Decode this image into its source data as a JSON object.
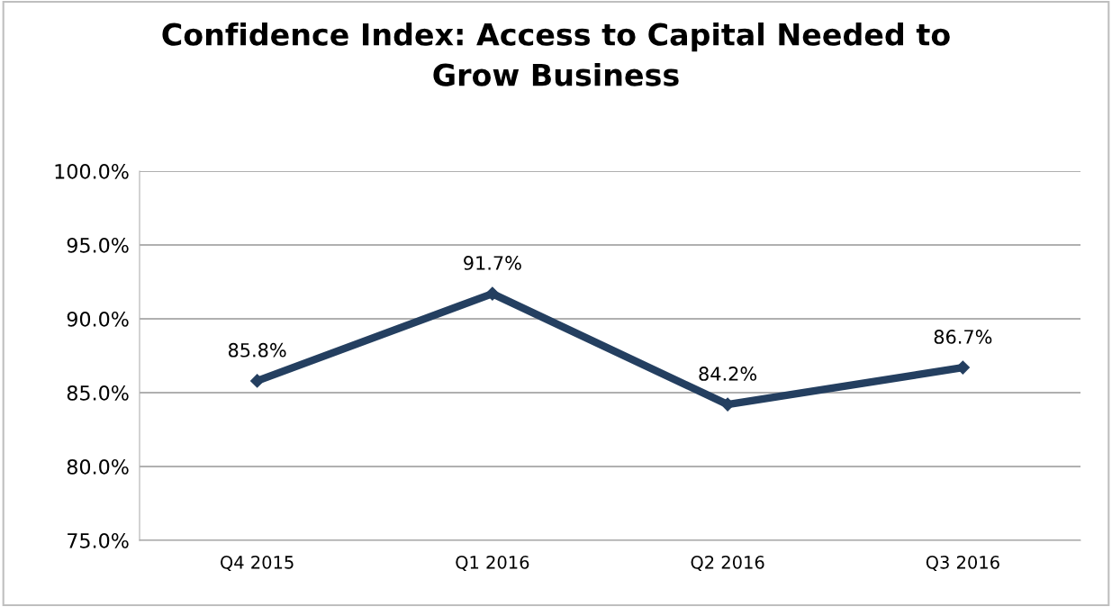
{
  "chart_data": {
    "type": "line",
    "title": "Confidence Index: Access to Capital Needed to\nGrow Business",
    "categories": [
      "Q4 2015",
      "Q1 2016",
      "Q2 2016",
      "Q3 2016"
    ],
    "series": [
      {
        "color": "#243f60",
        "values": [
          85.8,
          91.7,
          84.2,
          86.7
        ],
        "value_labels": [
          "85.8%",
          "91.7%",
          "84.2%",
          "86.7%"
        ]
      }
    ],
    "ylim": [
      75,
      100
    ],
    "yticks": [
      {
        "value": 75,
        "label": "75.0%"
      },
      {
        "value": 80,
        "label": "80.0%"
      },
      {
        "value": 85,
        "label": "85.0%"
      },
      {
        "value": 90,
        "label": "90.0%"
      },
      {
        "value": 95,
        "label": "95.0%"
      },
      {
        "value": 100,
        "label": "100.0%"
      }
    ],
    "grid": "y",
    "marker": "diamond",
    "line_style": "solid",
    "legend": false
  }
}
